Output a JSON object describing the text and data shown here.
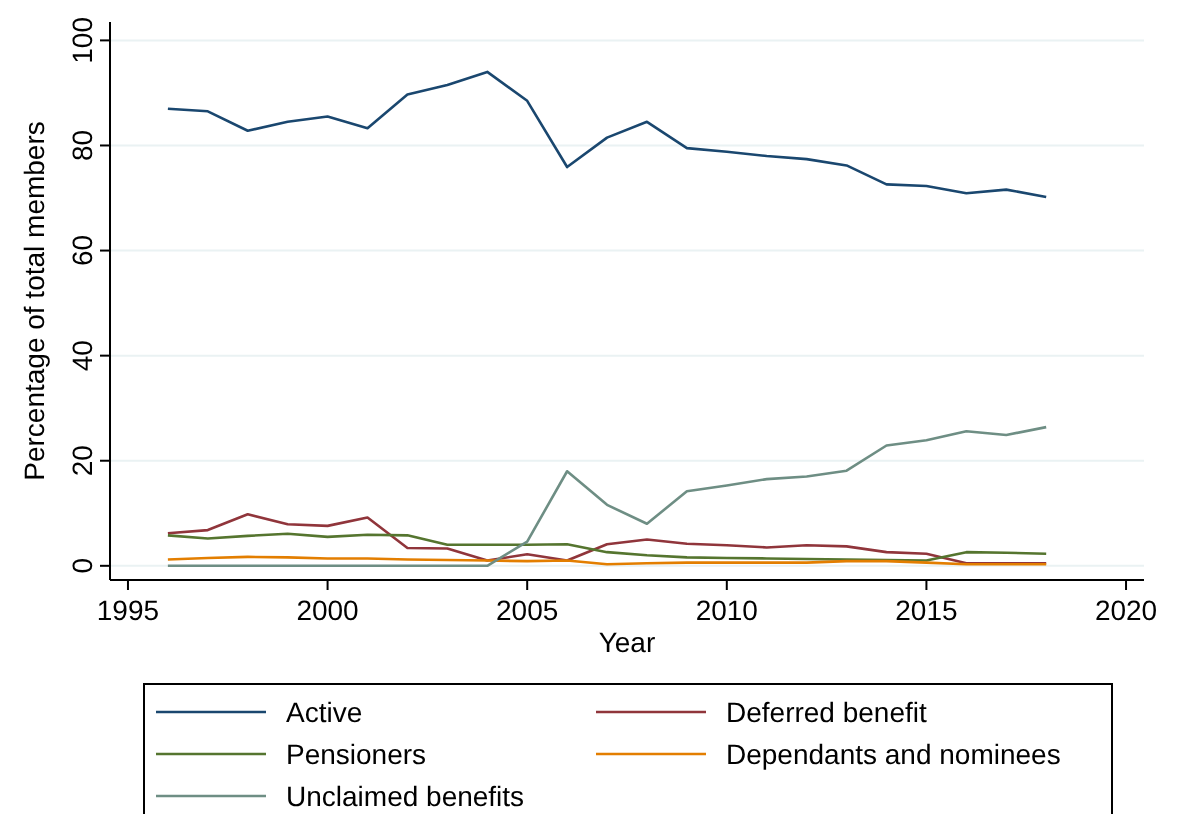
{
  "chart_data": {
    "type": "line",
    "xlabel": "Year",
    "ylabel": "Percentage of total members",
    "x": [
      1996,
      1997,
      1998,
      1999,
      2000,
      2001,
      2002,
      2003,
      2004,
      2005,
      2006,
      2007,
      2008,
      2009,
      2010,
      2011,
      2012,
      2013,
      2014,
      2015,
      2016,
      2017,
      2018
    ],
    "series": [
      {
        "name": "Active",
        "color": "#1a476f",
        "values": [
          87,
          86.5,
          82.8,
          84.5,
          85.5,
          83.3,
          89.7,
          91.5,
          94,
          88.5,
          75.9,
          81.5,
          84.5,
          79.5,
          78.8,
          78,
          77.4,
          76.2,
          72.6,
          72.3,
          70.9,
          71.6,
          70.2
        ]
      },
      {
        "name": "Deferred benefit",
        "color": "#90353b",
        "values": [
          6.2,
          6.8,
          9.8,
          7.9,
          7.6,
          9.2,
          3.4,
          3.3,
          1.0,
          2.2,
          1.0,
          4.1,
          5.0,
          4.2,
          3.9,
          3.5,
          3.9,
          3.7,
          2.6,
          2.3,
          0.5,
          0.5,
          0.5
        ]
      },
      {
        "name": "Pensioners",
        "color": "#55752f",
        "values": [
          5.8,
          5.2,
          5.7,
          6.1,
          5.5,
          5.9,
          5.8,
          4.0,
          4.0,
          4.0,
          4.1,
          2.6,
          2.0,
          1.6,
          1.5,
          1.4,
          1.3,
          1.2,
          1.1,
          1.0,
          2.6,
          2.5,
          2.3
        ]
      },
      {
        "name": "Dependants and nominees",
        "color": "#e37e00",
        "values": [
          1.2,
          1.5,
          1.7,
          1.6,
          1.4,
          1.4,
          1.2,
          1.1,
          1.0,
          0.9,
          1.0,
          0.3,
          0.5,
          0.6,
          0.6,
          0.6,
          0.6,
          0.9,
          0.9,
          0.6,
          0.3,
          0.3,
          0.3
        ]
      },
      {
        "name": "Unclaimed benefits",
        "color": "#6e8e84",
        "values": [
          0,
          0,
          0,
          0,
          0,
          0,
          0,
          0,
          0,
          4.6,
          18.0,
          11.6,
          8.0,
          14.2,
          15.3,
          16.5,
          17.0,
          18.1,
          22.9,
          23.9,
          25.6,
          24.9,
          26.4
        ]
      }
    ],
    "xlim": [
      1994.55,
      2020.45
    ],
    "xticks": [
      1995,
      2000,
      2005,
      2010,
      2015,
      2020
    ],
    "ylim": [
      -2.7,
      103.5
    ],
    "yticks": [
      0,
      20,
      40,
      60,
      80,
      100
    ],
    "grid": "y",
    "legend": "bottom",
    "marker": "none",
    "line_style": "solid"
  }
}
